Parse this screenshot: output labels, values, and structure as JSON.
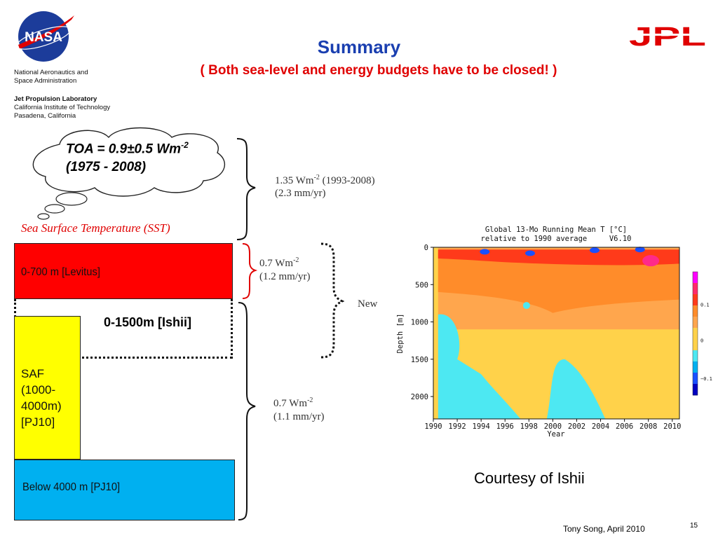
{
  "header": {
    "title": "Summary",
    "subtitle": "( Both sea-level and energy budgets have to be closed! )",
    "nasa_logo_text": "NASA",
    "nasa_org_line1": "National Aeronautics and",
    "nasa_org_line2": "Space Administration",
    "jpl_line1": "Jet Propulsion Laboratory",
    "jpl_line2": "California Institute of Technology",
    "jpl_line3": "Pasadena, California",
    "jpl_logo_text": "JPL"
  },
  "diagram": {
    "toa_line1": "TOA = 0.9±0.5 Wm",
    "toa_sup": "-2",
    "toa_line2": "(1975 - 2008)",
    "sst_label": "Sea Surface Temperature (SST)",
    "layer_levitus": "0-700 m [Levitus]",
    "layer_ishii": "0-1500m [Ishii]",
    "layer_saf_1": "SAF",
    "layer_saf_2": "(1000-",
    "layer_saf_3": "4000m)",
    "layer_saf_4": "[PJ10]",
    "layer_below": "Below 4000 m [PJ10]",
    "flux_top_1": "1.35 Wm",
    "flux_top_sup": "-2",
    "flux_top_2": " (1993-2008)",
    "flux_top_3": "(2.3 mm/yr)",
    "flux_mid_1": "0.7 Wm",
    "flux_mid_sup": "-2",
    "flux_mid_2": "(1.2 mm/yr)",
    "new_label": "New",
    "flux_low_1": "0.7 Wm",
    "flux_low_sup": "-2",
    "flux_low_2": "(1.1 mm/yr)"
  },
  "chart_data": {
    "type": "heatmap",
    "title_line1": "Global 13-Mo Running Mean T [°C]",
    "title_line2": "relative to 1990 average     V6.10",
    "xlabel": "Year",
    "ylabel": "Depth [m]",
    "x_ticks": [
      "1990",
      "1992",
      "1994",
      "1996",
      "1998",
      "2000",
      "2002",
      "2004",
      "2006",
      "2008",
      "2010"
    ],
    "y_ticks": [
      "0",
      "500",
      "1000",
      "1500",
      "2000"
    ],
    "xlim": [
      1990,
      2010.6
    ],
    "ylim": [
      0,
      2300
    ],
    "colorbar_ticks": [
      "0.1",
      "0",
      "−0.1"
    ],
    "colors": {
      "warm_strong": "#ff3a1a",
      "warm": "#ff8c2a",
      "light_warm": "#ffa64d",
      "neutral": "#ffd24a",
      "cool": "#4de8f2",
      "cold": "#1a50ff"
    }
  },
  "footer": {
    "courtesy": "Courtesy of Ishii",
    "author": "Tony Song, April 2010",
    "page": "15"
  }
}
